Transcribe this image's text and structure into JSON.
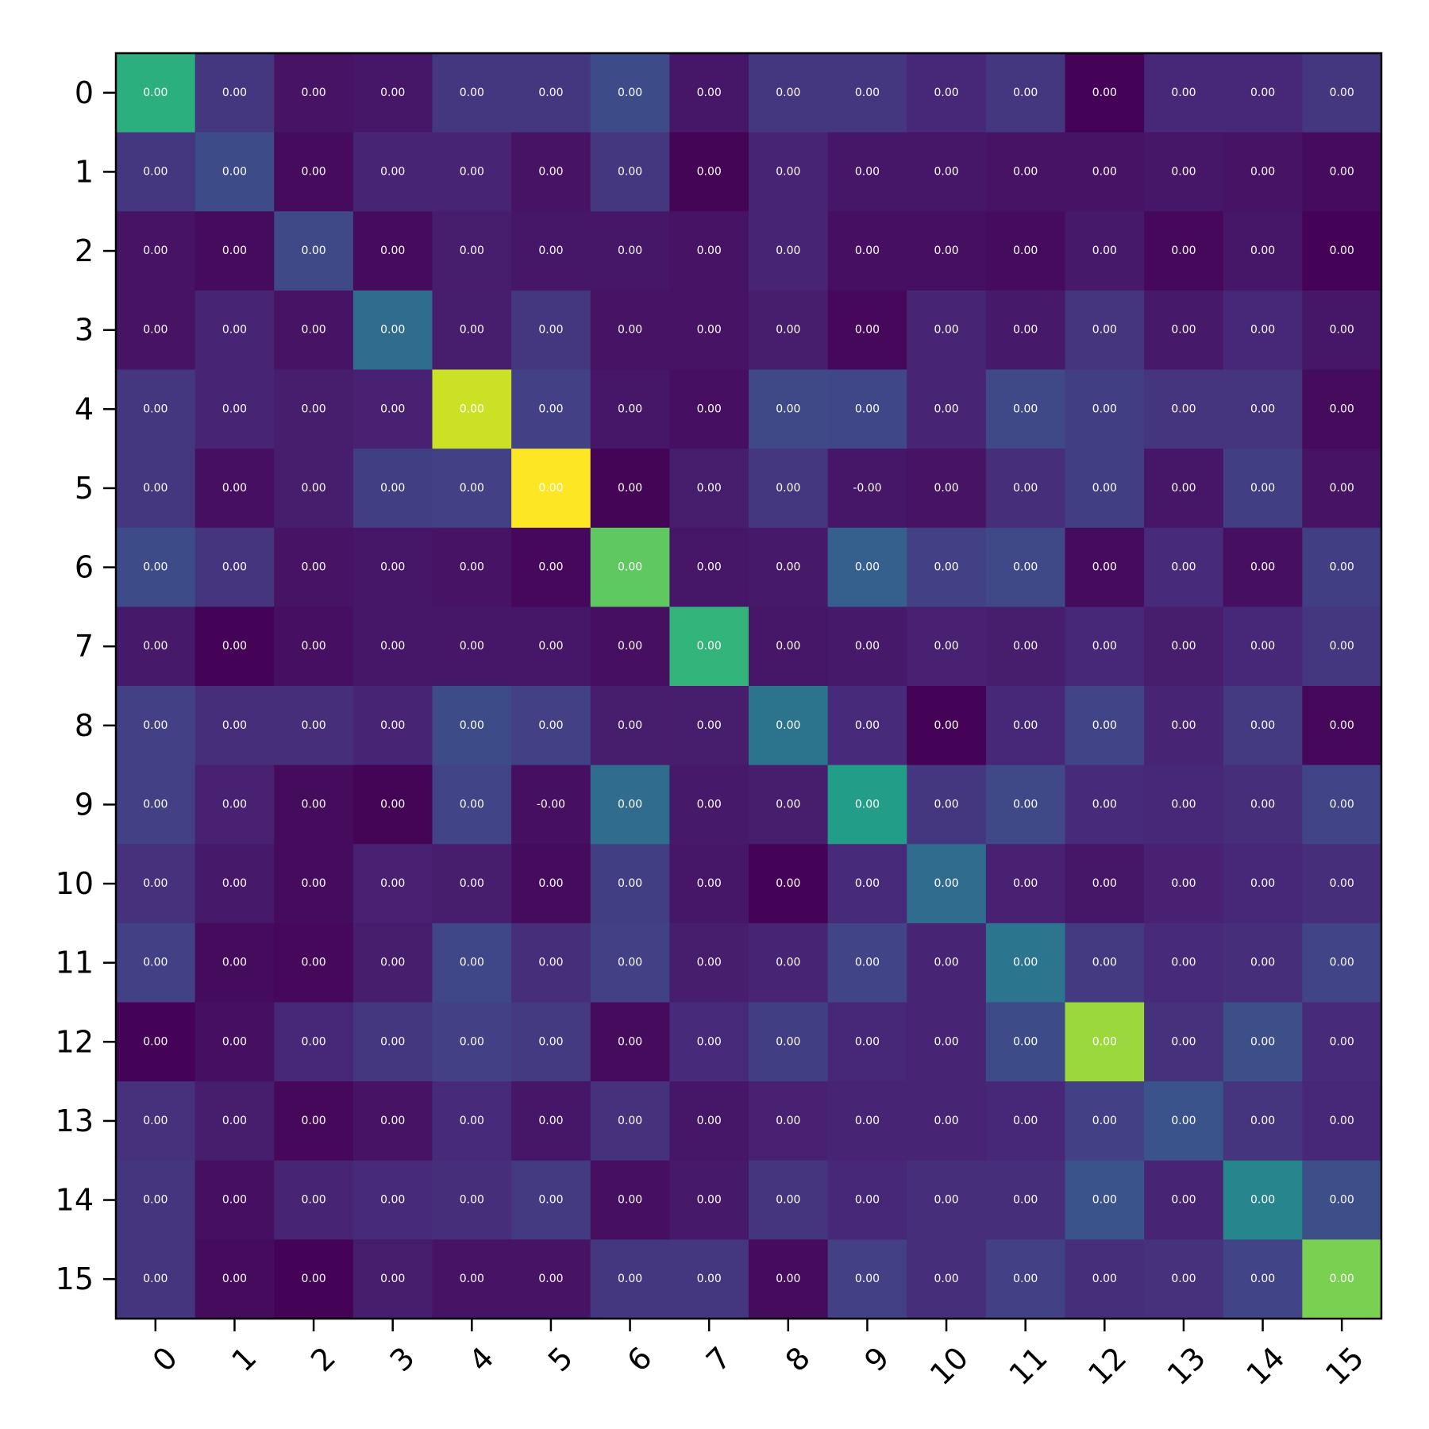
{
  "chart_data": {
    "type": "heatmap",
    "colormap": "viridis",
    "color_range": [
      0,
      10
    ],
    "rows": [
      "0",
      "1",
      "2",
      "3",
      "4",
      "5",
      "6",
      "7",
      "8",
      "9",
      "10",
      "11",
      "12",
      "13",
      "14",
      "15"
    ],
    "columns": [
      "0",
      "1",
      "2",
      "3",
      "4",
      "5",
      "6",
      "7",
      "8",
      "9",
      "10",
      "11",
      "12",
      "13",
      "14",
      "15"
    ],
    "intensity": [
      [
        6.3,
        1.6,
        0.5,
        0.6,
        1.6,
        1.6,
        2.3,
        0.6,
        1.6,
        1.6,
        1.1,
        1.6,
        0.05,
        1.1,
        1.1,
        1.6
      ],
      [
        1.6,
        2.3,
        0.3,
        1.0,
        1.0,
        0.5,
        1.6,
        0.1,
        1.0,
        0.6,
        0.6,
        0.5,
        0.5,
        0.6,
        0.5,
        0.3
      ],
      [
        0.5,
        0.3,
        2.2,
        0.3,
        0.8,
        0.6,
        0.6,
        0.5,
        1.0,
        0.4,
        0.4,
        0.3,
        0.7,
        0.2,
        0.6,
        0.05
      ],
      [
        0.5,
        1.0,
        0.5,
        3.5,
        0.8,
        1.6,
        0.5,
        0.5,
        0.8,
        0.2,
        1.0,
        0.7,
        1.5,
        0.7,
        1.1,
        0.6
      ],
      [
        1.6,
        1.0,
        0.8,
        0.9,
        9.2,
        1.9,
        0.6,
        0.4,
        2.2,
        2.1,
        1.0,
        2.2,
        1.8,
        1.5,
        1.5,
        0.3
      ],
      [
        1.6,
        0.4,
        0.8,
        1.8,
        1.9,
        10.0,
        0.1,
        0.8,
        1.6,
        0.6,
        0.5,
        1.3,
        1.8,
        0.6,
        1.8,
        0.5
      ],
      [
        2.3,
        1.5,
        0.5,
        0.6,
        0.5,
        0.2,
        7.5,
        0.6,
        0.7,
        3.0,
        1.9,
        2.2,
        0.3,
        1.2,
        0.4,
        1.8
      ],
      [
        0.7,
        0.05,
        0.4,
        0.6,
        0.6,
        0.6,
        0.4,
        6.5,
        0.6,
        0.7,
        0.9,
        0.8,
        1.1,
        0.8,
        1.1,
        1.6
      ],
      [
        1.9,
        1.3,
        1.3,
        1.0,
        2.3,
        1.9,
        0.8,
        0.8,
        3.8,
        1.2,
        0.05,
        1.1,
        2.0,
        1.0,
        1.7,
        0.2
      ],
      [
        1.9,
        0.9,
        0.3,
        0.1,
        2.0,
        0.4,
        3.5,
        0.7,
        0.8,
        5.5,
        1.6,
        2.2,
        1.2,
        1.1,
        1.3,
        2.0
      ],
      [
        1.4,
        0.7,
        0.3,
        0.9,
        0.8,
        0.3,
        1.8,
        0.6,
        0.05,
        1.2,
        3.5,
        0.9,
        0.6,
        0.9,
        1.1,
        1.3
      ],
      [
        1.9,
        0.3,
        0.2,
        0.8,
        2.1,
        1.3,
        1.9,
        0.8,
        1.0,
        2.0,
        1.0,
        3.9,
        1.7,
        1.2,
        1.3,
        2.0
      ],
      [
        0.05,
        0.4,
        1.1,
        1.6,
        1.9,
        1.7,
        0.3,
        1.2,
        1.8,
        1.1,
        1.0,
        2.3,
        8.5,
        1.4,
        2.4,
        1.2
      ],
      [
        1.4,
        0.8,
        0.2,
        0.5,
        1.2,
        0.6,
        1.4,
        0.6,
        0.9,
        1.0,
        1.0,
        1.1,
        1.9,
        2.6,
        1.5,
        1.1
      ],
      [
        1.5,
        0.4,
        1.0,
        1.2,
        1.3,
        1.7,
        0.4,
        0.7,
        1.5,
        1.1,
        1.3,
        1.3,
        2.6,
        1.0,
        4.5,
        2.4
      ],
      [
        1.5,
        0.3,
        0.05,
        0.8,
        0.5,
        0.5,
        1.6,
        1.6,
        0.3,
        1.9,
        1.3,
        1.9,
        1.3,
        1.4,
        2.0,
        8.0
      ]
    ],
    "cell_labels": [
      [
        "0.00",
        "0.00",
        "0.00",
        "0.00",
        "0.00",
        "0.00",
        "0.00",
        "0.00",
        "0.00",
        "0.00",
        "0.00",
        "0.00",
        "0.00",
        "0.00",
        "0.00",
        "0.00"
      ],
      [
        "0.00",
        "0.00",
        "0.00",
        "0.00",
        "0.00",
        "0.00",
        "0.00",
        "0.00",
        "0.00",
        "0.00",
        "0.00",
        "0.00",
        "0.00",
        "0.00",
        "0.00",
        "0.00"
      ],
      [
        "0.00",
        "0.00",
        "0.00",
        "0.00",
        "0.00",
        "0.00",
        "0.00",
        "0.00",
        "0.00",
        "0.00",
        "0.00",
        "0.00",
        "0.00",
        "0.00",
        "0.00",
        "0.00"
      ],
      [
        "0.00",
        "0.00",
        "0.00",
        "0.00",
        "0.00",
        "0.00",
        "0.00",
        "0.00",
        "0.00",
        "0.00",
        "0.00",
        "0.00",
        "0.00",
        "0.00",
        "0.00",
        "0.00"
      ],
      [
        "0.00",
        "0.00",
        "0.00",
        "0.00",
        "0.00",
        "0.00",
        "0.00",
        "0.00",
        "0.00",
        "0.00",
        "0.00",
        "0.00",
        "0.00",
        "0.00",
        "0.00",
        "0.00"
      ],
      [
        "0.00",
        "0.00",
        "0.00",
        "0.00",
        "0.00",
        "0.00",
        "0.00",
        "0.00",
        "0.00",
        "-0.00",
        "0.00",
        "0.00",
        "0.00",
        "0.00",
        "0.00",
        "0.00"
      ],
      [
        "0.00",
        "0.00",
        "0.00",
        "0.00",
        "0.00",
        "0.00",
        "0.00",
        "0.00",
        "0.00",
        "0.00",
        "0.00",
        "0.00",
        "0.00",
        "0.00",
        "0.00",
        "0.00"
      ],
      [
        "0.00",
        "0.00",
        "0.00",
        "0.00",
        "0.00",
        "0.00",
        "0.00",
        "0.00",
        "0.00",
        "0.00",
        "0.00",
        "0.00",
        "0.00",
        "0.00",
        "0.00",
        "0.00"
      ],
      [
        "0.00",
        "0.00",
        "0.00",
        "0.00",
        "0.00",
        "0.00",
        "0.00",
        "0.00",
        "0.00",
        "0.00",
        "0.00",
        "0.00",
        "0.00",
        "0.00",
        "0.00",
        "0.00"
      ],
      [
        "0.00",
        "0.00",
        "0.00",
        "0.00",
        "0.00",
        "-0.00",
        "0.00",
        "0.00",
        "0.00",
        "0.00",
        "0.00",
        "0.00",
        "0.00",
        "0.00",
        "0.00",
        "0.00"
      ],
      [
        "0.00",
        "0.00",
        "0.00",
        "0.00",
        "0.00",
        "0.00",
        "0.00",
        "0.00",
        "0.00",
        "0.00",
        "0.00",
        "0.00",
        "0.00",
        "0.00",
        "0.00",
        "0.00"
      ],
      [
        "0.00",
        "0.00",
        "0.00",
        "0.00",
        "0.00",
        "0.00",
        "0.00",
        "0.00",
        "0.00",
        "0.00",
        "0.00",
        "0.00",
        "0.00",
        "0.00",
        "0.00",
        "0.00"
      ],
      [
        "0.00",
        "0.00",
        "0.00",
        "0.00",
        "0.00",
        "0.00",
        "0.00",
        "0.00",
        "0.00",
        "0.00",
        "0.00",
        "0.00",
        "0.00",
        "0.00",
        "0.00",
        "0.00"
      ],
      [
        "0.00",
        "0.00",
        "0.00",
        "0.00",
        "0.00",
        "0.00",
        "0.00",
        "0.00",
        "0.00",
        "0.00",
        "0.00",
        "0.00",
        "0.00",
        "0.00",
        "0.00",
        "0.00"
      ],
      [
        "0.00",
        "0.00",
        "0.00",
        "0.00",
        "0.00",
        "0.00",
        "0.00",
        "0.00",
        "0.00",
        "0.00",
        "0.00",
        "0.00",
        "0.00",
        "0.00",
        "0.00",
        "0.00"
      ],
      [
        "0.00",
        "0.00",
        "0.00",
        "0.00",
        "0.00",
        "0.00",
        "0.00",
        "0.00",
        "0.00",
        "0.00",
        "0.00",
        "0.00",
        "0.00",
        "0.00",
        "0.00",
        "0.00"
      ]
    ],
    "title": "",
    "xlabel": "",
    "ylabel": "",
    "grid": false,
    "legend": "none"
  }
}
